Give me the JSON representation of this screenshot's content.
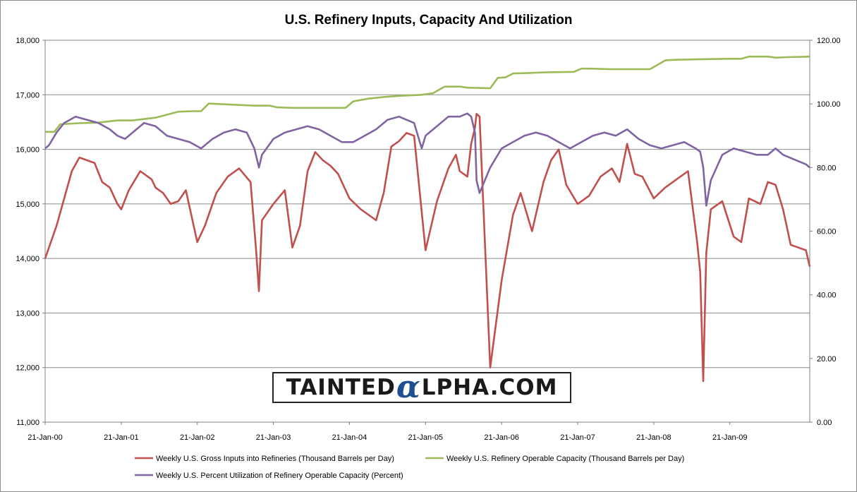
{
  "chart_data": {
    "type": "line",
    "title": "U.S. Refinery Inputs, Capacity And Utilization",
    "x_tick_labels": [
      "21-Jan-00",
      "21-Jan-01",
      "21-Jan-02",
      "21-Jan-03",
      "21-Jan-04",
      "21-Jan-05",
      "21-Jan-06",
      "21-Jan-07",
      "21-Jan-08",
      "21-Jan-09"
    ],
    "x_range_years": [
      2000.05,
      2010.1
    ],
    "y_left": {
      "range": [
        11000,
        18000
      ],
      "ticks": [
        "11,000",
        "12,000",
        "13,000",
        "14,000",
        "15,000",
        "16,000",
        "17,000",
        "18,000"
      ]
    },
    "y_right": {
      "range": [
        0,
        120
      ],
      "ticks": [
        "0.00",
        "20.00",
        "40.00",
        "60.00",
        "80.00",
        "100.00",
        "120.00"
      ]
    },
    "grid": "horizontal",
    "legend_position": "bottom",
    "series": [
      {
        "name": "Weekly U.S. Gross Inputs into Refineries  (Thousand  Barrels per Day)",
        "axis": "left",
        "color": "#c0504d",
        "x": [
          2000.05,
          2000.1,
          2000.2,
          2000.3,
          2000.4,
          2000.5,
          2000.6,
          2000.7,
          2000.8,
          2000.9,
          2001.0,
          2001.05,
          2001.15,
          2001.3,
          2001.45,
          2001.5,
          2001.6,
          2001.7,
          2001.8,
          2001.9,
          2002.05,
          2002.15,
          2002.3,
          2002.45,
          2002.6,
          2002.75,
          2002.82,
          2002.86,
          2002.9,
          2003.05,
          2003.2,
          2003.3,
          2003.4,
          2003.5,
          2003.6,
          2003.7,
          2003.8,
          2003.9,
          2004.05,
          2004.2,
          2004.4,
          2004.5,
          2004.6,
          2004.7,
          2004.8,
          2004.9,
          2005.05,
          2005.2,
          2005.35,
          2005.45,
          2005.5,
          2005.6,
          2005.65,
          2005.7,
          2005.72,
          2005.76,
          2005.9,
          2006.05,
          2006.2,
          2006.3,
          2006.45,
          2006.6,
          2006.7,
          2006.8,
          2006.9,
          2007.05,
          2007.2,
          2007.35,
          2007.5,
          2007.6,
          2007.7,
          2007.8,
          2007.9,
          2008.05,
          2008.2,
          2008.35,
          2008.5,
          2008.62,
          2008.66,
          2008.7,
          2008.74,
          2008.8,
          2008.95,
          2009.1,
          2009.2,
          2009.3,
          2009.45,
          2009.55,
          2009.65,
          2009.75,
          2009.85,
          2009.95,
          2010.05,
          2010.1
        ],
        "values": [
          14000,
          14200,
          14600,
          15100,
          15600,
          15850,
          15800,
          15750,
          15400,
          15300,
          15000,
          14900,
          15250,
          15600,
          15450,
          15300,
          15200,
          15000,
          15050,
          15250,
          14300,
          14600,
          15200,
          15500,
          15650,
          15400,
          14200,
          13400,
          14700,
          15000,
          15250,
          14200,
          14600,
          15600,
          15950,
          15800,
          15700,
          15550,
          15100,
          14900,
          14700,
          15200,
          16050,
          16150,
          16300,
          16250,
          14150,
          15050,
          15650,
          15900,
          15600,
          15500,
          16100,
          16400,
          16650,
          16600,
          12000,
          13600,
          14800,
          15200,
          14500,
          15400,
          15800,
          16000,
          15350,
          15000,
          15150,
          15500,
          15650,
          15400,
          16100,
          15550,
          15500,
          15100,
          15300,
          15450,
          15600,
          14300,
          13750,
          11750,
          14100,
          14900,
          15050,
          14400,
          14300,
          15100,
          15000,
          15400,
          15350,
          14900,
          14250,
          14200,
          14150,
          13850
        ]
      },
      {
        "name": "Weekly U.S. Refinery Operable Capacity  (Thousand  Barrels per Day)",
        "axis": "left",
        "color": "#9bbb59",
        "x": [
          2000.05,
          2000.17,
          2000.25,
          2000.5,
          2000.75,
          2001.0,
          2001.2,
          2001.5,
          2001.8,
          2002.0,
          2002.1,
          2002.2,
          2002.5,
          2002.8,
          2003.0,
          2003.1,
          2003.3,
          2003.6,
          2003.9,
          2004.0,
          2004.1,
          2004.3,
          2004.5,
          2004.7,
          2005.0,
          2005.15,
          2005.3,
          2005.5,
          2005.6,
          2005.9,
          2006.0,
          2006.1,
          2006.2,
          2006.4,
          2006.6,
          2007.0,
          2007.1,
          2007.2,
          2007.5,
          2007.8,
          2008.0,
          2008.2,
          2008.3,
          2008.6,
          2009.0,
          2009.2,
          2009.3,
          2009.55,
          2009.65,
          2009.8,
          2010.1
        ],
        "values": [
          16320,
          16320,
          16460,
          16480,
          16490,
          16530,
          16530,
          16580,
          16690,
          16700,
          16700,
          16840,
          16820,
          16800,
          16800,
          16770,
          16760,
          16760,
          16760,
          16760,
          16880,
          16930,
          16960,
          16980,
          17000,
          17030,
          17150,
          17150,
          17130,
          17120,
          17310,
          17320,
          17390,
          17400,
          17410,
          17420,
          17480,
          17480,
          17470,
          17470,
          17470,
          17630,
          17640,
          17650,
          17660,
          17660,
          17700,
          17700,
          17680,
          17690,
          17700
        ]
      },
      {
        "name": "Weekly U.S. Percent Utilization  of Refinery Operable Capacity  (Percent)",
        "axis": "right",
        "color": "#8064a2",
        "x": [
          2000.05,
          2000.1,
          2000.2,
          2000.3,
          2000.45,
          2000.6,
          2000.75,
          2000.9,
          2001.0,
          2001.1,
          2001.2,
          2001.35,
          2001.5,
          2001.65,
          2001.8,
          2001.95,
          2002.1,
          2002.25,
          2002.4,
          2002.55,
          2002.7,
          2002.8,
          2002.86,
          2002.9,
          2003.05,
          2003.2,
          2003.35,
          2003.5,
          2003.65,
          2003.8,
          2003.95,
          2004.1,
          2004.25,
          2004.4,
          2004.55,
          2004.7,
          2004.8,
          2004.9,
          2005.0,
          2005.05,
          2005.2,
          2005.35,
          2005.5,
          2005.6,
          2005.65,
          2005.7,
          2005.72,
          2005.76,
          2005.9,
          2006.05,
          2006.2,
          2006.35,
          2006.5,
          2006.65,
          2006.8,
          2006.95,
          2007.1,
          2007.25,
          2007.4,
          2007.55,
          2007.7,
          2007.85,
          2008.0,
          2008.15,
          2008.3,
          2008.45,
          2008.6,
          2008.66,
          2008.7,
          2008.74,
          2008.8,
          2008.95,
          2009.1,
          2009.25,
          2009.4,
          2009.55,
          2009.65,
          2009.75,
          2009.85,
          2009.95,
          2010.05,
          2010.1
        ],
        "values": [
          86,
          87,
          91,
          94,
          96,
          95,
          94,
          92,
          90,
          89,
          91,
          94,
          93,
          90,
          89,
          88,
          86,
          89,
          91,
          92,
          91,
          86,
          80,
          84,
          89,
          91,
          92,
          93,
          92,
          90,
          88,
          88,
          90,
          92,
          95,
          96,
          95,
          94,
          86,
          90,
          93,
          96,
          96,
          97,
          96,
          91,
          76,
          72,
          80,
          86,
          88,
          90,
          91,
          90,
          88,
          86,
          88,
          90,
          91,
          90,
          92,
          89,
          87,
          86,
          87,
          88,
          86,
          85,
          80,
          68,
          76,
          84,
          86,
          85,
          84,
          84,
          86,
          84,
          83,
          82,
          81,
          80
        ]
      }
    ]
  },
  "watermark": {
    "left": "TAINTED",
    "alpha": "α",
    "right": "LPHA.COM"
  }
}
